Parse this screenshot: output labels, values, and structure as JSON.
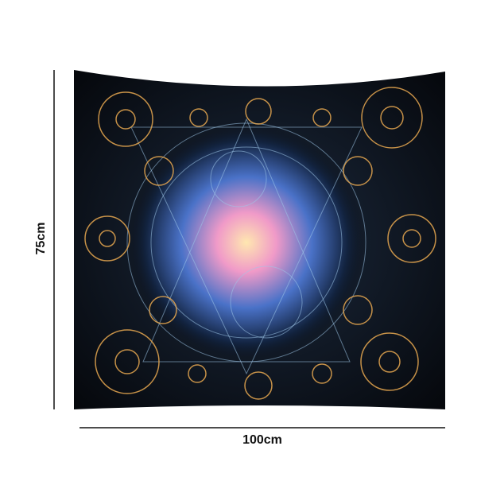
{
  "dimensions": {
    "height_label": "75cm",
    "width_label": "100cm"
  }
}
